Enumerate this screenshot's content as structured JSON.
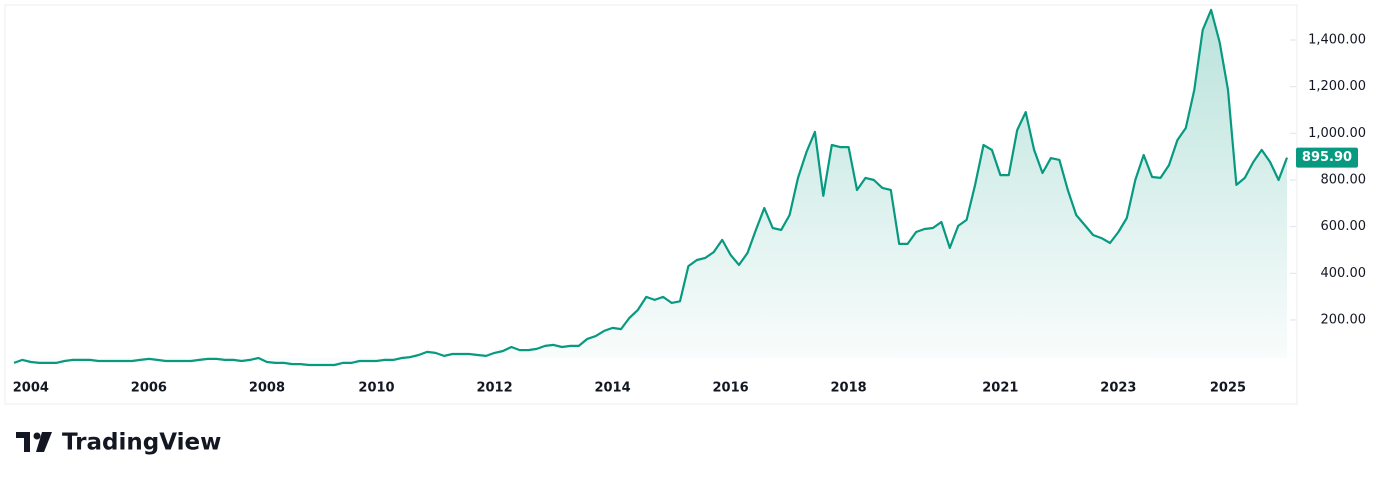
{
  "chart_data": {
    "type": "area",
    "brand": "TradingView",
    "last_price_label": "895.90",
    "color": "#089981",
    "categories": [
      null,
      null,
      "2004",
      null,
      null,
      null,
      null,
      null,
      null,
      null,
      null,
      null,
      null,
      null,
      null,
      null,
      "2006",
      null,
      null,
      null,
      null,
      null,
      null,
      null,
      null,
      null,
      null,
      null,
      null,
      null,
      "2008",
      null,
      null,
      null,
      null,
      null,
      null,
      null,
      null,
      null,
      null,
      null,
      null,
      "2010",
      null,
      null,
      null,
      null,
      null,
      null,
      null,
      null,
      null,
      null,
      null,
      null,
      null,
      "2012",
      null,
      null,
      null,
      null,
      null,
      null,
      null,
      null,
      null,
      null,
      null,
      null,
      null,
      "2014",
      null,
      null,
      null,
      null,
      null,
      null,
      null,
      null,
      null,
      null,
      null,
      null,
      null,
      "2016",
      null,
      null,
      null,
      null,
      null,
      null,
      null,
      null,
      null,
      null,
      null,
      null,
      null,
      "2018",
      null,
      null,
      null,
      null,
      null,
      null,
      null,
      null,
      null,
      null,
      null,
      null,
      null,
      null,
      null,
      null,
      null,
      "2021",
      null,
      null,
      null,
      null,
      null,
      null,
      null,
      null,
      null,
      null,
      null,
      null,
      null,
      "2023",
      null,
      null,
      null,
      null,
      null,
      null,
      null,
      null,
      null,
      null,
      null,
      null,
      "2025",
      null,
      null,
      null,
      null,
      null,
      null,
      null
    ],
    "values": [
      16,
      29,
      20,
      16,
      16,
      16,
      24,
      29,
      29,
      29,
      24,
      24,
      24,
      24,
      24,
      29,
      33,
      29,
      24,
      24,
      24,
      24,
      29,
      33,
      33,
      29,
      29,
      24,
      29,
      37,
      20,
      16,
      16,
      11,
      11,
      7,
      7,
      7,
      7,
      16,
      16,
      24,
      24,
      24,
      29,
      29,
      37,
      41,
      50,
      63,
      59,
      46,
      54,
      54,
      54,
      50,
      46,
      59,
      67,
      84,
      71,
      71,
      76,
      89,
      93,
      84,
      89,
      89,
      119,
      131,
      153,
      166,
      161,
      209,
      243,
      299,
      286,
      299,
      273,
      280,
      431,
      457,
      466,
      491,
      543,
      479,
      436,
      487,
      586,
      680,
      594,
      586,
      650,
      809,
      920,
      1006,
      732,
      950,
      941,
      941,
      757,
      809,
      800,
      766,
      757,
      526,
      526,
      577,
      590,
      594,
      620,
      509,
      603,
      629,
      779,
      950,
      929,
      821,
      821,
      1014,
      1091,
      929,
      830,
      894,
      886,
      757,
      650,
      607,
      564,
      551,
      530,
      577,
      637,
      800,
      907,
      813,
      809,
      864,
      971,
      1023,
      1186,
      1443,
      1529,
      1391,
      1186,
      779,
      809,
      877,
      929,
      877,
      800,
      895.9
    ],
    "ylim": [
      37,
      1550
    ],
    "yticks": [
      {
        "value": 200,
        "label": "200.00"
      },
      {
        "value": 400,
        "label": "400.00"
      },
      {
        "value": 600,
        "label": "600.00"
      },
      {
        "value": 800,
        "label": "800.00"
      },
      {
        "value": 1000,
        "label": "1,000.00"
      },
      {
        "value": 1200,
        "label": "1,200.00"
      },
      {
        "value": 1400,
        "label": "1,400.00"
      }
    ]
  }
}
